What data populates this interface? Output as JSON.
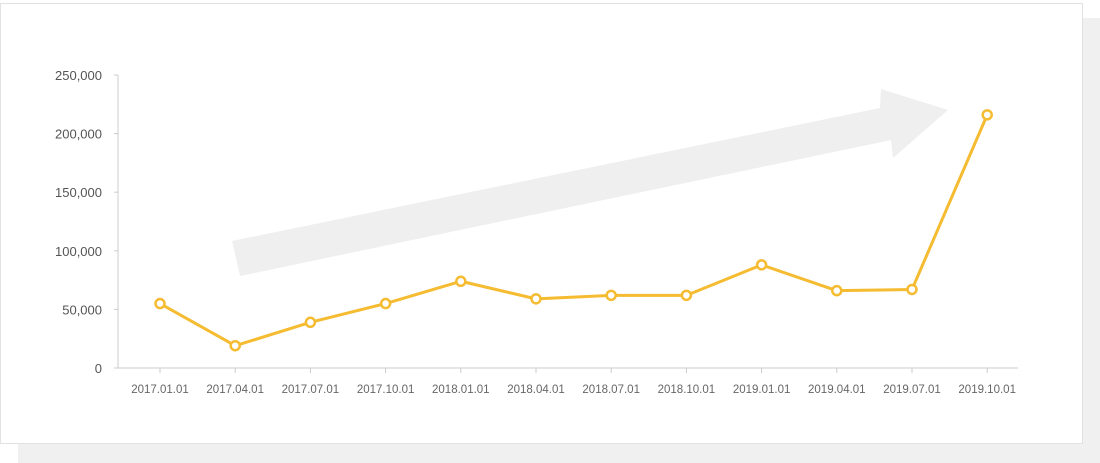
{
  "colors": {
    "line": "#f5bb31",
    "marker_fill": "#ffffff",
    "axis": "#cccccc",
    "arrow": "#efefef"
  },
  "chart_data": {
    "type": "line",
    "title": "",
    "xlabel": "",
    "ylabel": "",
    "categories": [
      "2017.01.01",
      "2017.04.01",
      "2017.07.01",
      "2017.10.01",
      "2018.01.01",
      "2018.04.01",
      "2018.07.01",
      "2018.10.01",
      "2019.01.01",
      "2019.04.01",
      "2019.07.01",
      "2019.10.01"
    ],
    "series": [
      {
        "values": [
          55000,
          19000,
          39000,
          55000,
          74000,
          59000,
          62000,
          62000,
          88000,
          66000,
          67000,
          216000
        ]
      }
    ],
    "ylim": [
      0,
      250000
    ],
    "yticks": [
      0,
      50000,
      100000,
      150000,
      200000,
      250000
    ],
    "ytick_labels": [
      "0",
      "50,000",
      "100,000",
      "150,000",
      "200,000",
      "250,000"
    ],
    "grid": false,
    "annotations": [
      "upward-trend-arrow"
    ]
  }
}
